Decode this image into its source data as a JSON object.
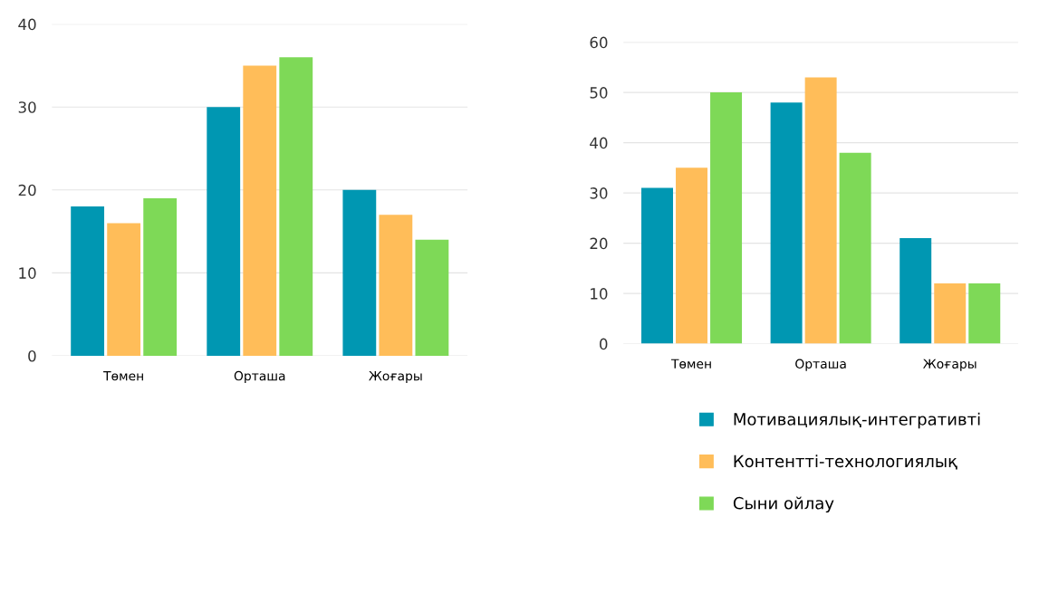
{
  "chart_data": [
    {
      "type": "bar",
      "categories": [
        "Төмен",
        "Орташа",
        "Жоғары"
      ],
      "ylim": [
        0,
        40
      ],
      "yticks": [
        0,
        10,
        20,
        30,
        40
      ],
      "grid": "y",
      "legend": false,
      "series": [
        {
          "color": "#0097b2",
          "values": [
            18,
            30,
            20
          ]
        },
        {
          "color": "#ffbd59",
          "values": [
            16,
            35,
            17
          ]
        },
        {
          "color": "#7ed957",
          "values": [
            19,
            36,
            14
          ]
        }
      ]
    },
    {
      "type": "bar",
      "categories": [
        "Төмен",
        "Орташа",
        "Жоғары"
      ],
      "ylim": [
        0,
        60
      ],
      "yticks": [
        0,
        10,
        20,
        30,
        40,
        50,
        60
      ],
      "grid": "y",
      "legend": "bottom",
      "series": [
        {
          "name": "Мотивациялық-интегративті",
          "color": "#0097b2",
          "values": [
            31,
            48,
            21
          ]
        },
        {
          "name": "Контентті-технологиялық",
          "color": "#ffbd59",
          "values": [
            35,
            53,
            12
          ]
        },
        {
          "name": "Сыни ойлау",
          "color": "#7ed957",
          "values": [
            50,
            38,
            12
          ]
        }
      ]
    }
  ]
}
